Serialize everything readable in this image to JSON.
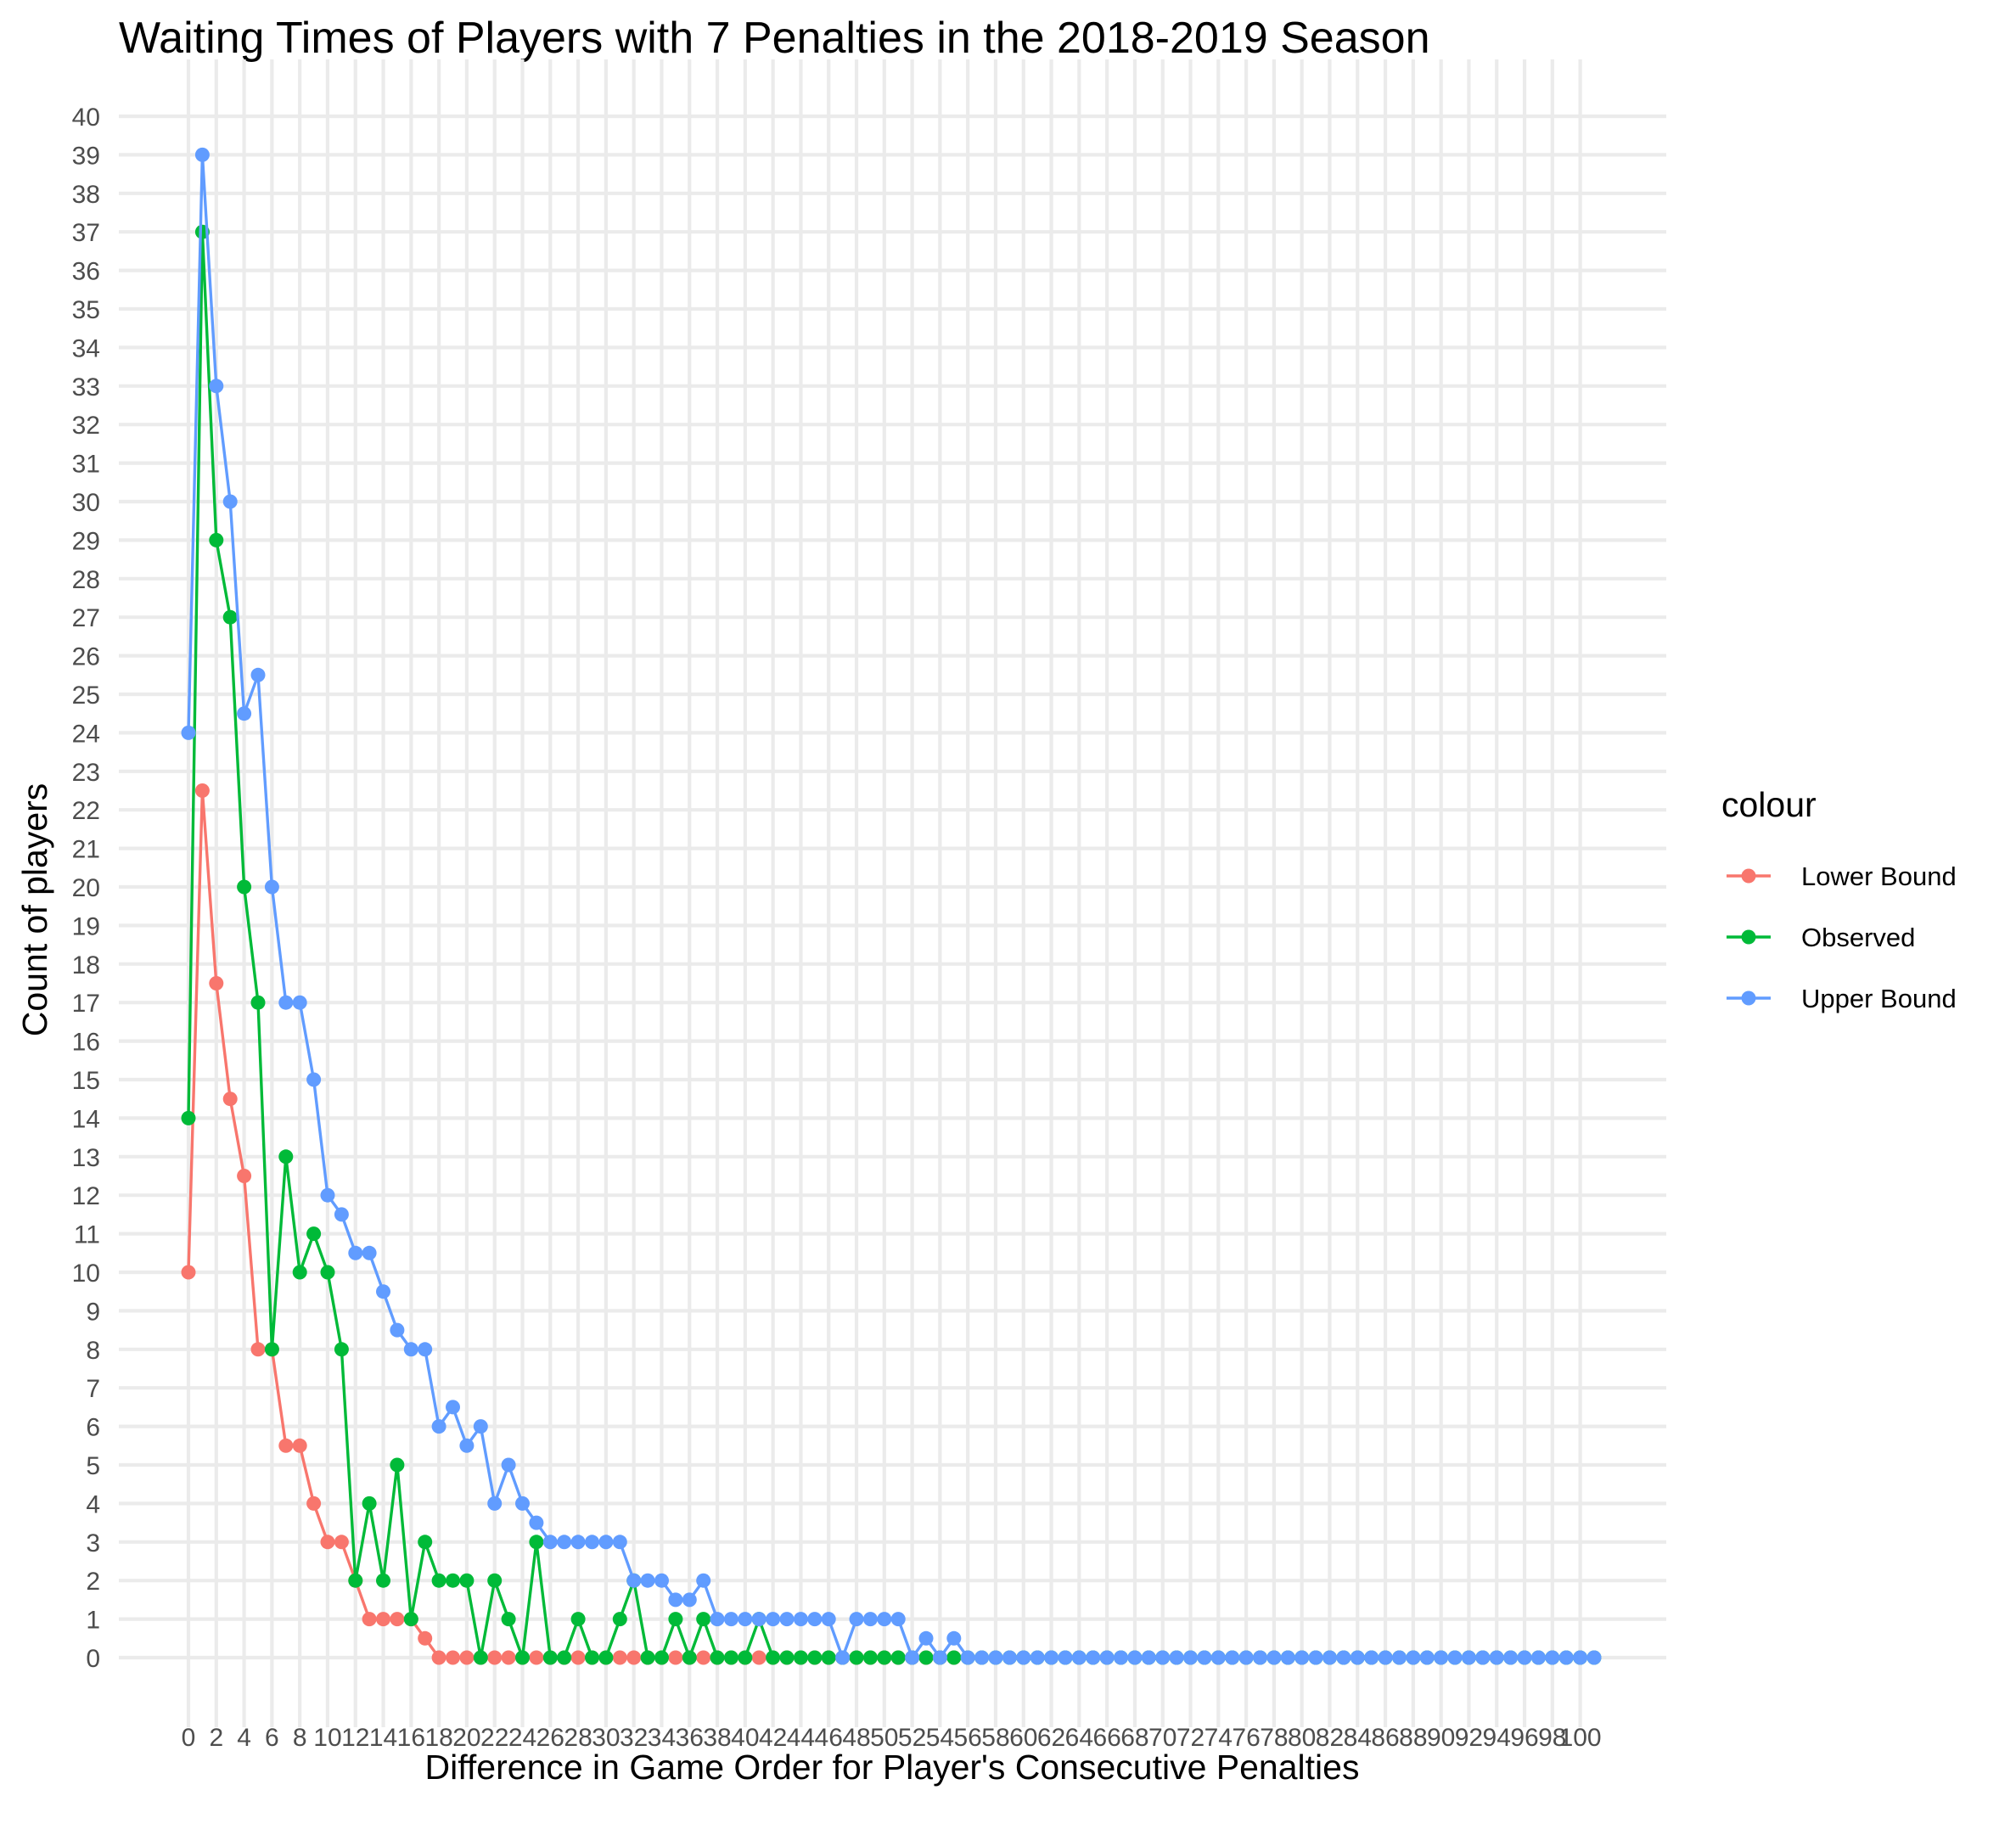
{
  "chart_data": {
    "type": "line",
    "title": "Waiting Times of Players with 7 Penalties in the 2018-2019 Season",
    "xlabel": "Difference in Game Order for Player's Consecutive Penalties",
    "ylabel": "Count of players",
    "xlim": [
      0,
      101
    ],
    "ylim": [
      0,
      40
    ],
    "x_ticks": [
      0,
      2,
      4,
      6,
      8,
      10,
      12,
      14,
      16,
      18,
      20,
      22,
      24,
      26,
      28,
      30,
      32,
      34,
      36,
      38,
      40,
      42,
      44,
      46,
      48,
      50,
      52,
      54,
      56,
      58,
      60,
      62,
      64,
      66,
      68,
      70,
      72,
      74,
      76,
      78,
      80,
      82,
      84,
      86,
      88,
      90,
      92,
      94,
      96,
      98,
      100
    ],
    "y_ticks": [
      0,
      1,
      2,
      3,
      4,
      5,
      6,
      7,
      8,
      9,
      10,
      11,
      12,
      13,
      14,
      15,
      16,
      17,
      18,
      19,
      20,
      21,
      22,
      23,
      24,
      25,
      26,
      27,
      28,
      29,
      30,
      31,
      32,
      33,
      34,
      35,
      36,
      37,
      38,
      39,
      40
    ],
    "grid": true,
    "legend": {
      "title": "colour",
      "position": "right"
    },
    "series": [
      {
        "name": "Lower Bound",
        "color": "#F8766D",
        "x": [
          0,
          1,
          2,
          3,
          4,
          5,
          6,
          7,
          8,
          9,
          10,
          11,
          12,
          13,
          14,
          15,
          16,
          17,
          18,
          19,
          20,
          21,
          22,
          23,
          24,
          25,
          26,
          27,
          28,
          29,
          30,
          31,
          32,
          33,
          34,
          35,
          36,
          37,
          38,
          39,
          40,
          41,
          42,
          43,
          44,
          45,
          46,
          47,
          48,
          49,
          50,
          51,
          52,
          53,
          54,
          55
        ],
        "y": [
          10,
          22.5,
          17.5,
          14.5,
          12.5,
          8,
          8,
          5.5,
          5.5,
          4,
          3,
          3,
          2,
          1,
          1,
          1,
          1,
          0.5,
          0,
          0,
          0,
          0,
          0,
          0,
          0,
          0,
          0,
          0,
          0,
          0,
          0,
          0,
          0,
          0,
          0,
          0,
          0,
          0,
          0,
          0,
          0,
          0,
          0,
          0,
          0,
          0,
          0,
          0,
          0,
          0,
          0,
          0,
          0,
          0,
          0,
          0
        ]
      },
      {
        "name": "Observed",
        "color": "#00BA38",
        "x": [
          0,
          1,
          2,
          3,
          4,
          5,
          6,
          7,
          8,
          9,
          10,
          11,
          12,
          13,
          14,
          15,
          16,
          17,
          18,
          19,
          20,
          21,
          22,
          23,
          24,
          25,
          26,
          27,
          28,
          29,
          30,
          31,
          32,
          33,
          34,
          35,
          36,
          37,
          38,
          39,
          40,
          41,
          42,
          43,
          44,
          45,
          46,
          47,
          48,
          49,
          50,
          51,
          52,
          53,
          54,
          55,
          56,
          57,
          58,
          59,
          60,
          61,
          62,
          63,
          64,
          65,
          66,
          67,
          68,
          69,
          70,
          71,
          72,
          73,
          74,
          75,
          76,
          77,
          78,
          79,
          80,
          81,
          82,
          83,
          84,
          85,
          86,
          87,
          88,
          89,
          90,
          91,
          92,
          93,
          94,
          95,
          96,
          97,
          98,
          99,
          100,
          101
        ],
        "y": [
          14,
          37,
          29,
          27,
          20,
          17,
          8,
          13,
          10,
          11,
          10,
          8,
          2,
          4,
          2,
          5,
          1,
          3,
          2,
          2,
          2,
          0,
          2,
          1,
          0,
          3,
          0,
          0,
          1,
          0,
          0,
          1,
          2,
          0,
          0,
          1,
          0,
          1,
          0,
          0,
          0,
          1,
          0,
          0,
          0,
          0,
          0,
          0,
          0,
          0,
          0,
          0,
          0,
          0,
          0,
          0,
          0,
          0,
          0,
          0,
          0,
          0,
          0,
          0,
          0,
          0,
          0,
          0,
          0,
          0,
          0,
          0,
          0,
          0,
          0,
          0,
          0,
          0,
          0,
          0,
          0,
          0,
          0,
          0,
          0,
          0,
          0,
          0,
          0,
          0,
          0,
          0,
          0,
          0,
          0,
          0,
          0,
          0,
          0,
          0,
          0,
          0
        ]
      },
      {
        "name": "Upper Bound",
        "color": "#619CFF",
        "x": [
          0,
          1,
          2,
          3,
          4,
          5,
          6,
          7,
          8,
          9,
          10,
          11,
          12,
          13,
          14,
          15,
          16,
          17,
          18,
          19,
          20,
          21,
          22,
          23,
          24,
          25,
          26,
          27,
          28,
          29,
          30,
          31,
          32,
          33,
          34,
          35,
          36,
          37,
          38,
          39,
          40,
          41,
          42,
          43,
          44,
          45,
          46,
          47,
          48,
          49,
          50,
          51,
          52,
          53,
          54,
          55,
          56,
          57,
          58,
          59,
          60,
          61,
          62,
          63,
          64,
          65,
          66,
          67,
          68,
          69,
          70,
          71,
          72,
          73,
          74,
          75,
          76,
          77,
          78,
          79,
          80,
          81,
          82,
          83,
          84,
          85,
          86,
          87,
          88,
          89,
          90,
          91,
          92,
          93,
          94,
          95,
          96,
          97,
          98,
          99,
          100,
          101
        ],
        "y": [
          24,
          39,
          33,
          30,
          24.5,
          25.5,
          20,
          17,
          17,
          15,
          12,
          11.5,
          10.5,
          10.5,
          9.5,
          8.5,
          8,
          8,
          6,
          6.5,
          5.5,
          6,
          4,
          5,
          4,
          3.5,
          3,
          3,
          3,
          3,
          3,
          3,
          2,
          2,
          2,
          1.5,
          1.5,
          2,
          1,
          1,
          1,
          1,
          1,
          1,
          1,
          1,
          1,
          0,
          1,
          1,
          1,
          1,
          0,
          0.5,
          0,
          0.5,
          0,
          0,
          0,
          0,
          0,
          0,
          0,
          0,
          0,
          0,
          0,
          0,
          0,
          0,
          0,
          0,
          0,
          0,
          0,
          0,
          0,
          0,
          0,
          0,
          0,
          0,
          0,
          0,
          0,
          0,
          0,
          0,
          0,
          0,
          0,
          0,
          0,
          0,
          0,
          0,
          0,
          0,
          0,
          0,
          0,
          0
        ]
      }
    ]
  }
}
